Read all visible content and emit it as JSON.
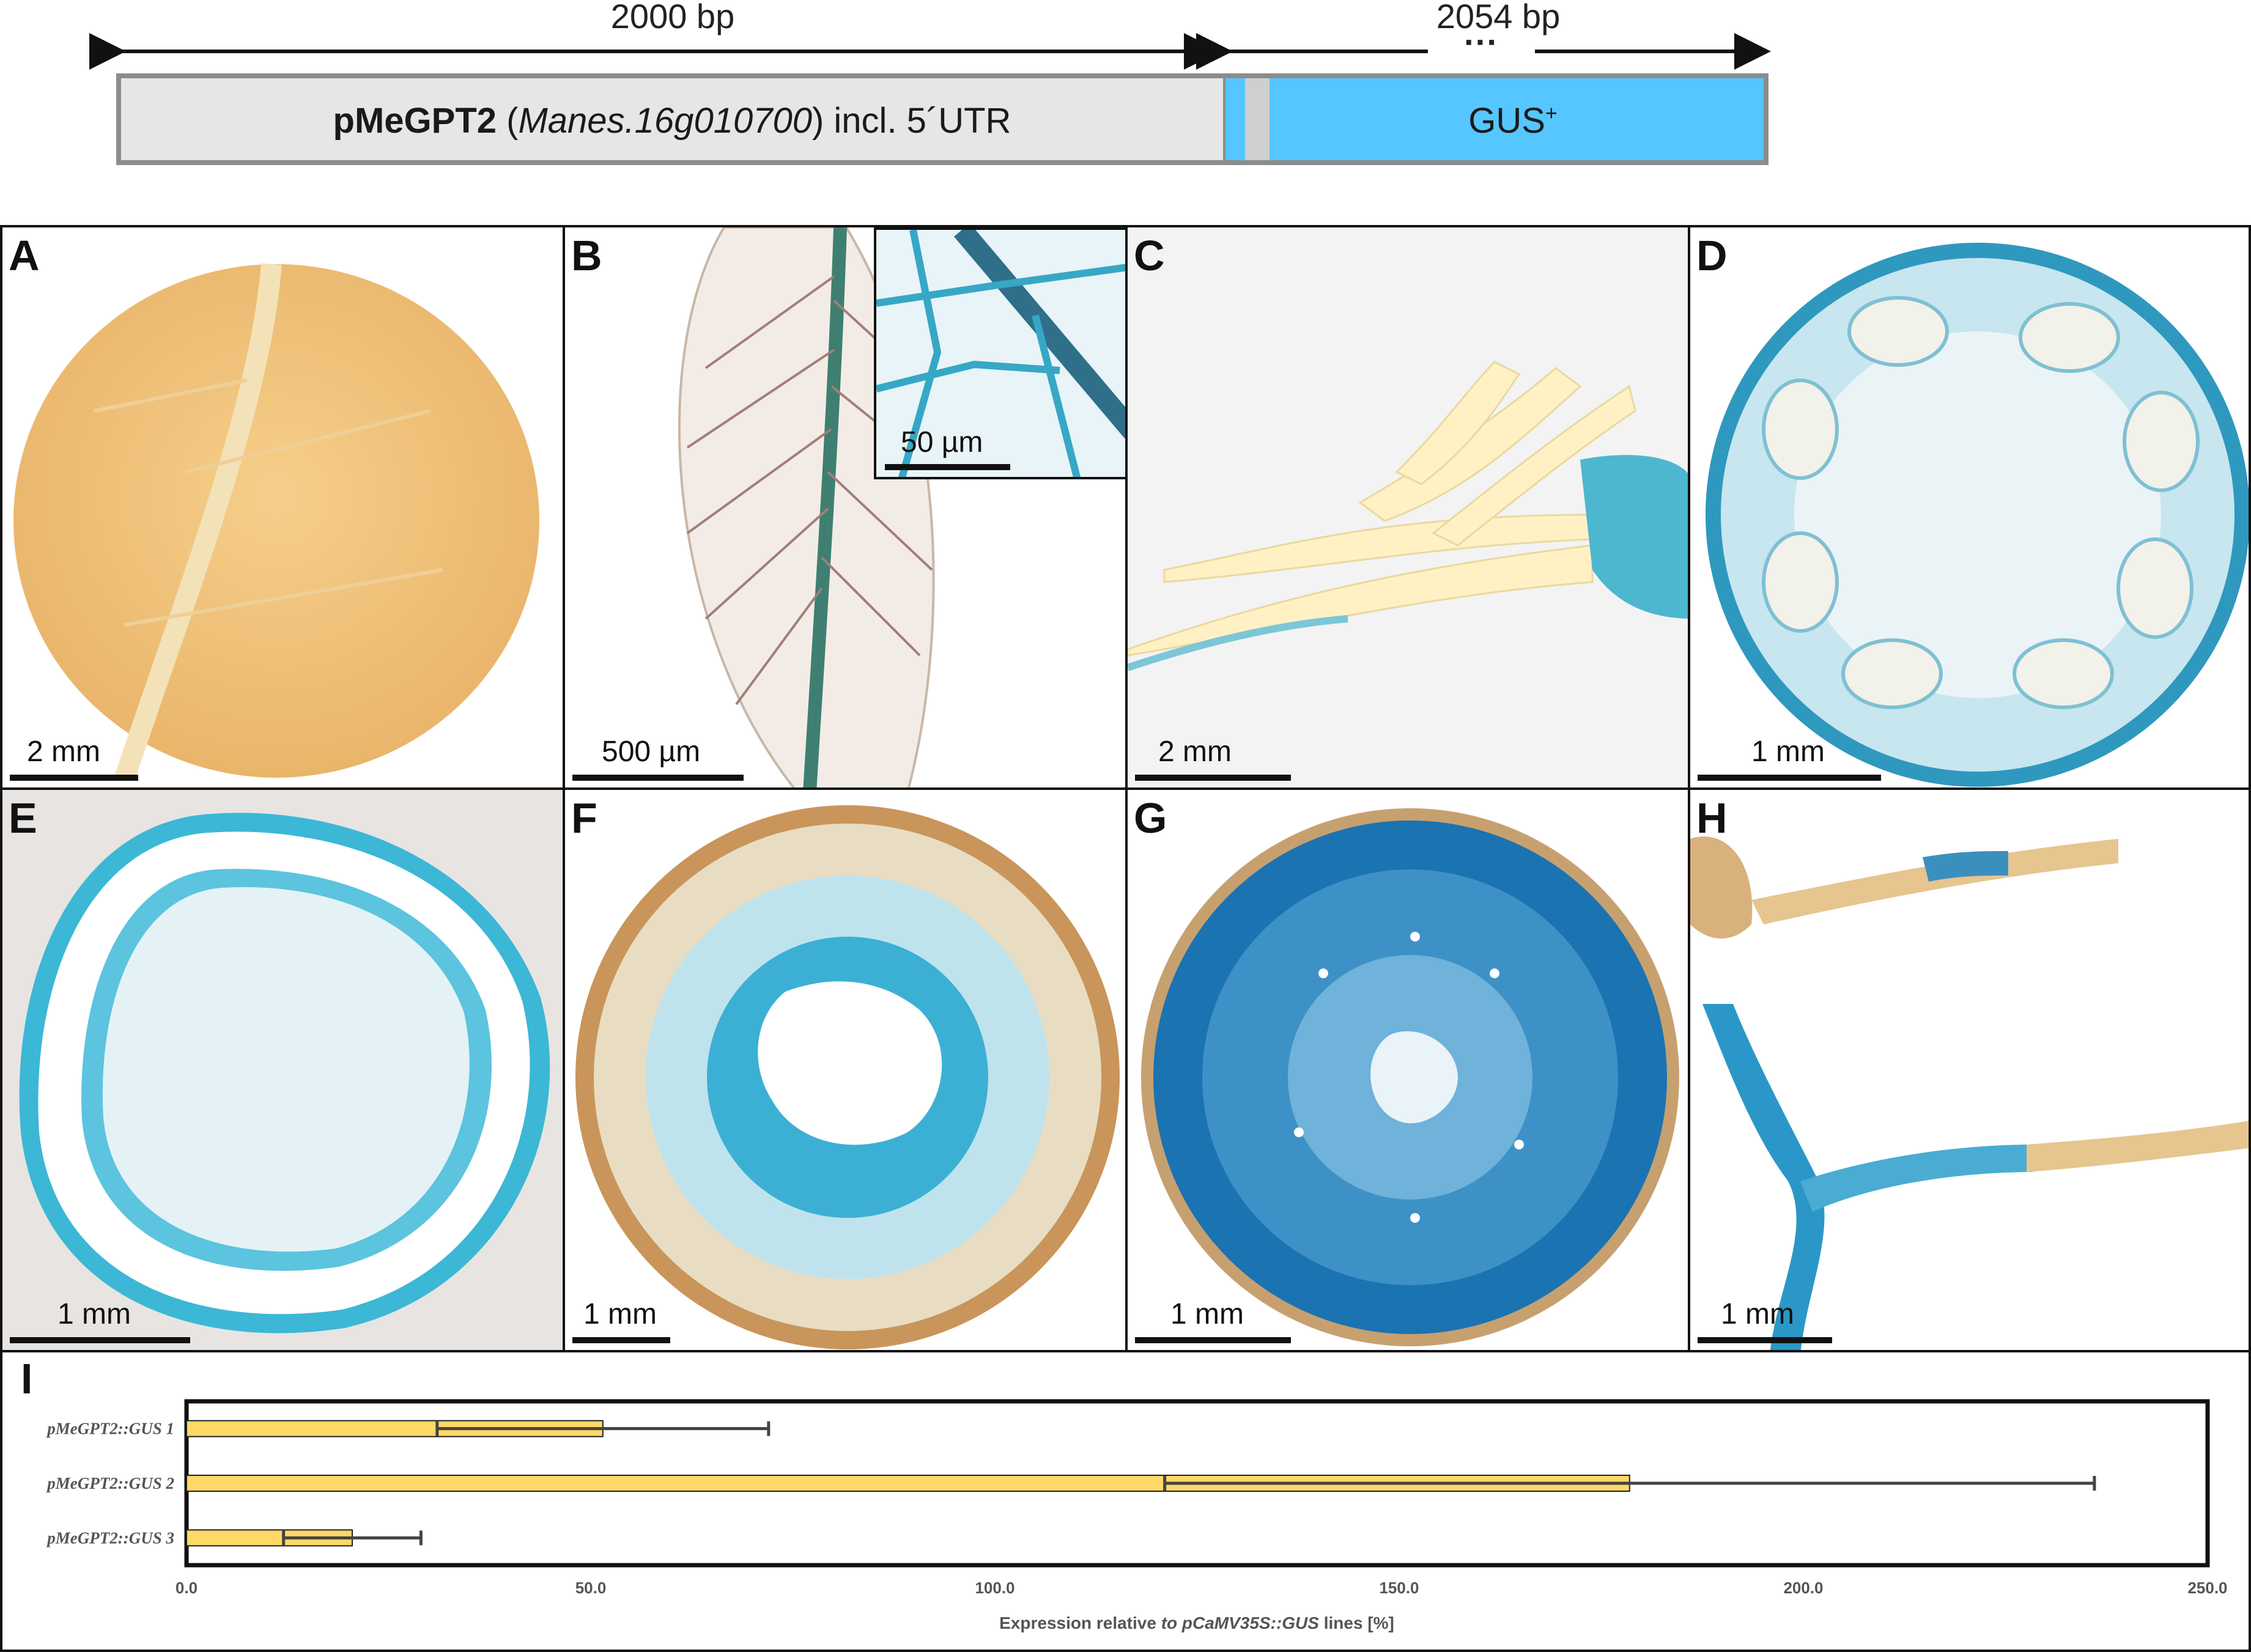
{
  "construct": {
    "left_length": "2000 bp",
    "right_length": "2054 bp",
    "ellipsis": "···",
    "promoter_bold": "pMeGPT2",
    "promoter_paren_open": " (",
    "promoter_gene": "Manes.16g010700",
    "promoter_rest": ") incl. 5´UTR",
    "reporter": "GUS",
    "reporter_sup": "+",
    "colors": {
      "promoter": "#e6e6e6",
      "reporter": "#55c6ff",
      "outline": "#8c8c8c"
    }
  },
  "panels": [
    {
      "letter": "A",
      "scale": "2 mm"
    },
    {
      "letter": "B",
      "scale": "500 µm",
      "inset_scale": "50 µm"
    },
    {
      "letter": "C",
      "scale": "2 mm"
    },
    {
      "letter": "D",
      "scale": "1 mm"
    },
    {
      "letter": "E",
      "scale": "1 mm"
    },
    {
      "letter": "F",
      "scale": "1 mm"
    },
    {
      "letter": "G",
      "scale": "1 mm"
    },
    {
      "letter": "H",
      "scale": "1 mm"
    }
  ],
  "chart_letter": "I",
  "chart_data": {
    "type": "bar",
    "orientation": "horizontal",
    "categories": [
      "pMeGPT2::GUS 1",
      "pMeGPT2::GUS 2",
      "pMeGPT2::GUS 3"
    ],
    "values": [
      51.5,
      178.5,
      20.5
    ],
    "error": [
      20.5,
      57.5,
      8.5
    ],
    "xlabel_prefix": "Expression relative ",
    "xlabel_italic": "to pCaMV35S::GUS",
    "xlabel_suffix": " lines [%]",
    "xlim": [
      0,
      250
    ],
    "xticks": [
      "0.0",
      "50.0",
      "100.0",
      "150.0",
      "200.0",
      "250.0"
    ],
    "bar_color": "#ffd966",
    "grid": false,
    "legend": "none"
  }
}
